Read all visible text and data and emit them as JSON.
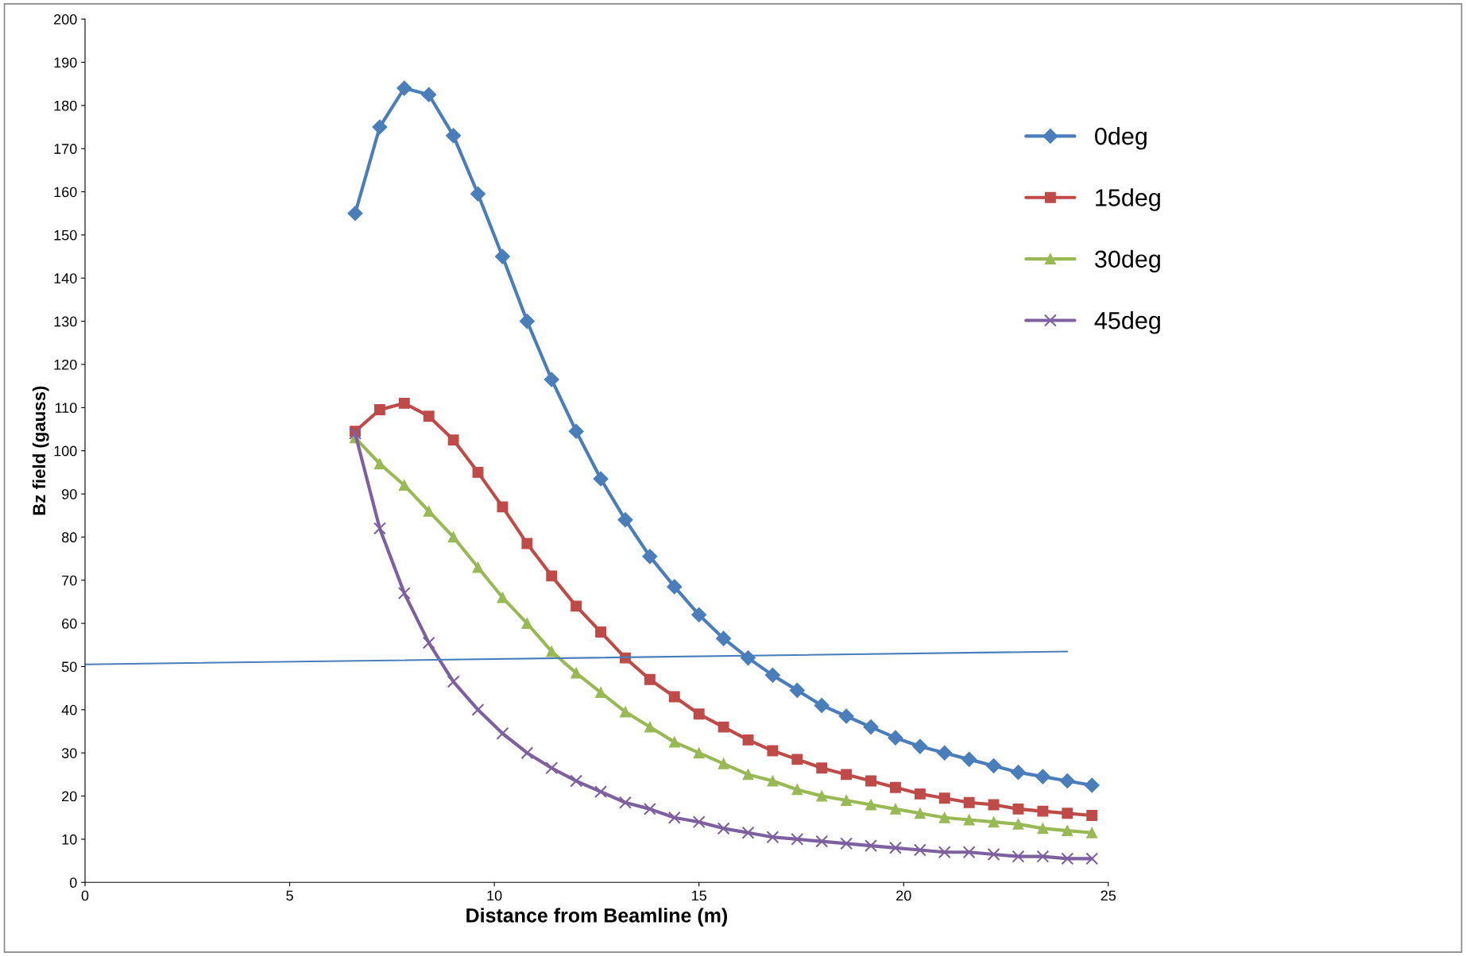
{
  "chart_data": {
    "type": "line",
    "xlabel": "Distance from Beamline (m)",
    "ylabel": "Bz field (gauss)",
    "x": [
      6.6,
      7.2,
      7.8,
      8.4,
      9.0,
      9.6,
      10.2,
      10.8,
      11.4,
      12.0,
      12.6,
      13.2,
      13.8,
      14.4,
      15.0,
      15.6,
      16.2,
      16.8,
      17.4,
      18.0,
      18.6,
      19.2,
      19.8,
      20.4,
      21.0,
      21.6,
      22.2,
      22.8,
      23.4,
      24.0,
      24.6
    ],
    "series": [
      {
        "name": "0deg",
        "color": "#4a7ebb",
        "marker": "diamond",
        "values": [
          155,
          175,
          184,
          182.5,
          173,
          159.5,
          145,
          130,
          116.5,
          104.5,
          93.5,
          84,
          75.5,
          68.5,
          62,
          56.5,
          52,
          48,
          44.5,
          41,
          38.5,
          36,
          33.5,
          31.5,
          30,
          28.5,
          27,
          25.5,
          24.5,
          23.5,
          22.5
        ]
      },
      {
        "name": "15deg",
        "color": "#be4b48",
        "marker": "square",
        "values": [
          104.5,
          109.5,
          111,
          108,
          102.5,
          95,
          87,
          78.5,
          71,
          64,
          58,
          52,
          47,
          43,
          39,
          36,
          33,
          30.5,
          28.5,
          26.5,
          25,
          23.5,
          22,
          20.5,
          19.5,
          18.5,
          18,
          17,
          16.5,
          16,
          15.5
        ]
      },
      {
        "name": "30deg",
        "color": "#98b954",
        "marker": "triangle",
        "values": [
          103,
          97,
          92,
          86,
          80,
          73,
          66,
          60,
          53.5,
          48.5,
          44,
          39.5,
          36,
          32.5,
          30,
          27.5,
          25,
          23.5,
          21.5,
          20,
          19,
          18,
          17,
          16,
          15,
          14.5,
          14,
          13.5,
          12.5,
          12,
          11.5
        ]
      },
      {
        "name": "45deg",
        "color": "#7d60a0",
        "marker": "cross",
        "values": [
          104,
          82,
          67,
          55.5,
          46.5,
          40,
          34.5,
          30,
          26.5,
          23.5,
          21,
          18.5,
          17,
          15,
          14,
          12.5,
          11.5,
          10.5,
          10,
          9.5,
          9,
          8.5,
          8,
          7.5,
          7,
          7,
          6.5,
          6,
          6,
          5.5,
          5.5
        ]
      },
      {
        "type": "line",
        "color": "#4a7ebb",
        "marker": "none",
        "x": [
          0,
          24
        ],
        "values": [
          50.5,
          53.5
        ]
      }
    ],
    "xlim": [
      0,
      25
    ],
    "xticks": [
      0,
      5,
      10,
      15,
      20,
      25
    ],
    "ylim": [
      0,
      200
    ],
    "yticks": [
      0,
      10,
      20,
      30,
      40,
      50,
      60,
      70,
      80,
      90,
      100,
      110,
      120,
      130,
      140,
      150,
      160,
      170,
      180,
      190,
      200
    ],
    "grid": false,
    "legend": "top right",
    "line_style": "solid"
  }
}
